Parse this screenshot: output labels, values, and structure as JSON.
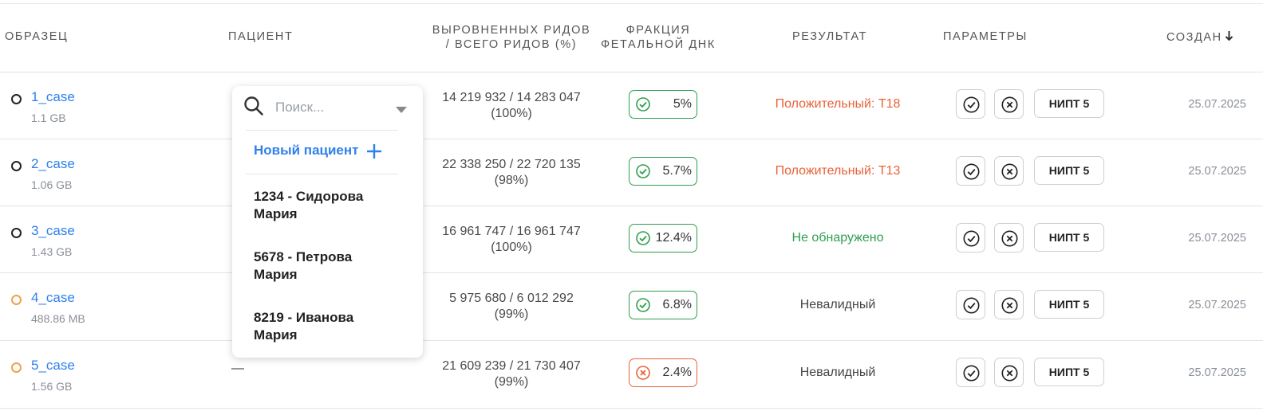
{
  "headers": {
    "sample": "ОБРАЗЕЦ",
    "patient": "ПАЦИЕНТ",
    "reads_line1": "ВЫРОВНЕННЫХ РИДОВ",
    "reads_line2": "/ ВСЕГО РИДОВ (%)",
    "fraction_line1": "ФРАКЦИЯ",
    "fraction_line2": "ФЕТАЛЬНОЙ ДНК",
    "result": "РЕЗУЛЬТАТ",
    "params": "ПАРАМЕТРЫ",
    "created": "СОЗДАН"
  },
  "rows": [
    {
      "name": "1_case",
      "size": "1.1 GB",
      "status": "complete",
      "reads": "14 219 932 / 14 283 047",
      "percent": "(100%)",
      "fraction": "5%",
      "fraction_ok": true,
      "result": "Положительный: T18",
      "result_type": "positive",
      "param": "НИПТ 5",
      "date": "25.07.2025",
      "patient": ""
    },
    {
      "name": "2_case",
      "size": "1.06 GB",
      "status": "complete",
      "reads": "22 338 250 / 22 720 135",
      "percent": "(98%)",
      "fraction": "5.7%",
      "fraction_ok": true,
      "result": "Положительный: T13",
      "result_type": "positive",
      "param": "НИПТ 5",
      "date": "25.07.2025",
      "patient": ""
    },
    {
      "name": "3_case",
      "size": "1.43 GB",
      "status": "complete",
      "reads": "16 961 747 / 16 961 747",
      "percent": "(100%)",
      "fraction": "12.4%",
      "fraction_ok": true,
      "result": "Не обнаружено",
      "result_type": "negative",
      "param": "НИПТ 5",
      "date": "25.07.2025",
      "patient": ""
    },
    {
      "name": "4_case",
      "size": "488.86 MB",
      "status": "warning",
      "reads": "5 975 680 / 6 012 292",
      "percent": "(99%)",
      "fraction": "6.8%",
      "fraction_ok": true,
      "result": "Невалидный",
      "result_type": "invalid",
      "param": "НИПТ 5",
      "date": "25.07.2025",
      "patient": ""
    },
    {
      "name": "5_case",
      "size": "1.56 GB",
      "status": "warning",
      "reads": "21 609 239 / 21 730 407",
      "percent": "(99%)",
      "fraction": "2.4%",
      "fraction_ok": false,
      "result": "Невалидный",
      "result_type": "invalid",
      "param": "НИПТ 5",
      "date": "25.07.2025",
      "patient": "—"
    }
  ],
  "patient_dropdown": {
    "placeholder": "Поиск...",
    "new_patient": "Новый пациент",
    "options": [
      {
        "line1": "1234 - Сидорова",
        "line2": "Мария"
      },
      {
        "line1": "5678 - Петрова",
        "line2": "Мария"
      },
      {
        "line1": "8219 - Иванова",
        "line2": "Мария"
      }
    ]
  },
  "colors": {
    "link": "#2f80ed",
    "ok": "#2e9e4f",
    "bad": "#e8623a",
    "warning_dot": "#f0a04b"
  }
}
